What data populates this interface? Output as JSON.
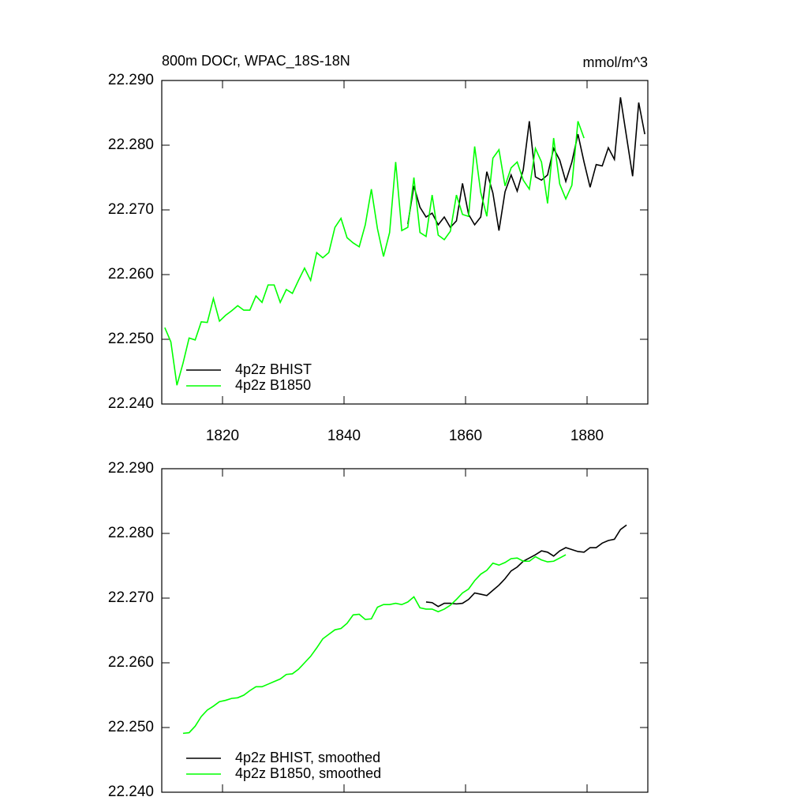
{
  "chart_data": [
    {
      "type": "line",
      "title": "800m DOCr, WPAC_18S-18N",
      "units": "mmol/m^3",
      "xlim": [
        1810,
        1890
      ],
      "xticks": [
        1820,
        1840,
        1860,
        1880
      ],
      "ylim": [
        22.24,
        22.29
      ],
      "yticks": [
        {
          "value": 22.24,
          "label": "22.240"
        },
        {
          "value": 22.25,
          "label": "22.250"
        },
        {
          "value": 22.26,
          "label": "22.260"
        },
        {
          "value": 22.27,
          "label": "22.270"
        },
        {
          "value": 22.28,
          "label": "22.280"
        },
        {
          "value": 22.29,
          "label": "22.290"
        }
      ],
      "legend": "lower left",
      "series": [
        {
          "name": "4p2z BHIST",
          "color": "#000000",
          "x": [
            1850.5,
            1851.5,
            1852.5,
            1853.5,
            1854.5,
            1855.5,
            1856.5,
            1857.5,
            1858.5,
            1859.5,
            1860.5,
            1861.5,
            1862.5,
            1863.5,
            1864.5,
            1865.5,
            1866.5,
            1867.5,
            1868.5,
            1869.5,
            1870.5,
            1871.5,
            1872.5,
            1873.5,
            1874.5,
            1875.5,
            1876.5,
            1877.5,
            1878.5,
            1879.5,
            1880.5,
            1881.5,
            1882.5,
            1883.5,
            1884.5,
            1885.5,
            1886.5,
            1887.5,
            1888.5,
            1889.5
          ],
          "values": [
            22.2678,
            22.2737,
            22.2704,
            22.2689,
            22.2695,
            22.2677,
            22.2689,
            22.2673,
            22.2683,
            22.2741,
            22.2693,
            22.2677,
            22.2689,
            22.2759,
            22.2726,
            22.2668,
            22.2728,
            22.2754,
            22.2729,
            22.2762,
            22.2837,
            22.2751,
            22.2746,
            22.2754,
            22.2795,
            22.2777,
            22.2744,
            22.2774,
            22.2817,
            22.2774,
            22.2735,
            22.277,
            22.2768,
            22.2796,
            22.2778,
            22.2874,
            22.2813,
            22.2752,
            22.2866,
            22.2817
          ]
        },
        {
          "name": "4p2z B1850",
          "color": "#00ff00",
          "x": [
            1810.5,
            1811.5,
            1812.5,
            1813.5,
            1814.5,
            1815.5,
            1816.5,
            1817.5,
            1818.5,
            1819.5,
            1820.5,
            1821.5,
            1822.5,
            1823.5,
            1824.5,
            1825.5,
            1826.5,
            1827.5,
            1828.5,
            1829.5,
            1830.5,
            1831.5,
            1832.5,
            1833.5,
            1834.5,
            1835.5,
            1836.5,
            1837.5,
            1838.5,
            1839.5,
            1840.5,
            1841.5,
            1842.5,
            1843.5,
            1844.5,
            1845.5,
            1846.5,
            1847.5,
            1848.5,
            1849.5,
            1850.5,
            1851.5,
            1852.5,
            1853.5,
            1854.5,
            1855.5,
            1856.5,
            1857.5,
            1858.5,
            1859.5,
            1860.5,
            1861.5,
            1862.5,
            1863.5,
            1864.5,
            1865.5,
            1866.5,
            1867.5,
            1868.5,
            1869.5,
            1870.5,
            1871.5,
            1872.5,
            1873.5,
            1874.5,
            1875.5,
            1876.5,
            1877.5,
            1878.5,
            1879.5
          ],
          "values": [
            22.2518,
            22.2496,
            22.2429,
            22.2463,
            22.2502,
            22.2499,
            22.2527,
            22.2526,
            22.2563,
            22.2528,
            22.2537,
            22.2544,
            22.2552,
            22.2545,
            22.2545,
            22.2567,
            22.2557,
            22.2584,
            22.2584,
            22.2557,
            22.2577,
            22.2571,
            22.2591,
            22.261,
            22.2591,
            22.2634,
            22.2626,
            22.2634,
            22.2673,
            22.2687,
            22.2657,
            22.2649,
            22.2643,
            22.2677,
            22.2732,
            22.2671,
            22.2628,
            22.2665,
            22.2774,
            22.2668,
            22.2673,
            22.275,
            22.2665,
            22.2659,
            22.2723,
            22.2661,
            22.2654,
            22.2667,
            22.2723,
            22.2693,
            22.269,
            22.2798,
            22.2727,
            22.269,
            22.278,
            22.2793,
            22.2737,
            22.2765,
            22.2774,
            22.2746,
            22.2732,
            22.2795,
            22.2774,
            22.271,
            22.2811,
            22.274,
            22.2717,
            22.2738,
            22.2837,
            22.2811
          ]
        }
      ]
    },
    {
      "type": "line",
      "xlim": [
        1810,
        1890
      ],
      "xticks": [
        1820,
        1840,
        1860,
        1880
      ],
      "ylim": [
        22.24,
        22.29
      ],
      "yticks": [
        {
          "value": 22.24,
          "label": "22.240"
        },
        {
          "value": 22.25,
          "label": "22.250"
        },
        {
          "value": 22.26,
          "label": "22.260"
        },
        {
          "value": 22.27,
          "label": "22.270"
        },
        {
          "value": 22.28,
          "label": "22.280"
        },
        {
          "value": 22.29,
          "label": "22.290"
        }
      ],
      "legend": "lower left",
      "series": [
        {
          "name": "4p2z BHIST, smoothed",
          "color": "#000000",
          "x": [
            1853.5,
            1854.5,
            1855.5,
            1856.5,
            1857.5,
            1858.5,
            1859.5,
            1860.5,
            1861.5,
            1862.5,
            1863.5,
            1864.5,
            1865.5,
            1866.5,
            1867.5,
            1868.5,
            1869.5,
            1870.5,
            1871.5,
            1872.5,
            1873.5,
            1874.5,
            1875.5,
            1876.5,
            1877.5,
            1878.5,
            1879.5,
            1880.5,
            1881.5,
            1882.5,
            1883.5,
            1884.5,
            1885.5,
            1886.5
          ],
          "values": [
            22.2694,
            22.2693,
            22.2687,
            22.2692,
            22.2692,
            22.2691,
            22.2692,
            22.2698,
            22.2708,
            22.2706,
            22.2704,
            22.2712,
            22.272,
            22.273,
            22.2742,
            22.2748,
            22.2757,
            22.2762,
            22.2767,
            22.2773,
            22.2771,
            22.2765,
            22.2773,
            22.2778,
            22.2775,
            22.2772,
            22.2771,
            22.2778,
            22.2778,
            22.2785,
            22.2789,
            22.2791,
            22.2806,
            22.2813
          ]
        },
        {
          "name": "4p2z B1850, smoothed",
          "color": "#00ff00",
          "x": [
            1813.5,
            1814.5,
            1815.5,
            1816.5,
            1817.5,
            1818.5,
            1819.5,
            1820.5,
            1821.5,
            1822.5,
            1823.5,
            1824.5,
            1825.5,
            1826.5,
            1827.5,
            1828.5,
            1829.5,
            1830.5,
            1831.5,
            1832.5,
            1833.5,
            1834.5,
            1835.5,
            1836.5,
            1837.5,
            1838.5,
            1839.5,
            1840.5,
            1841.5,
            1842.5,
            1843.5,
            1844.5,
            1845.5,
            1846.5,
            1847.5,
            1848.5,
            1849.5,
            1850.5,
            1851.5,
            1852.5,
            1853.5,
            1854.5,
            1855.5,
            1856.5,
            1857.5,
            1858.5,
            1859.5,
            1860.5,
            1861.5,
            1862.5,
            1863.5,
            1864.5,
            1865.5,
            1866.5,
            1867.5,
            1868.5,
            1869.5,
            1870.5,
            1871.5,
            1872.5,
            1873.5,
            1874.5,
            1875.5,
            1876.5
          ],
          "values": [
            22.2491,
            22.2492,
            22.2502,
            22.2517,
            22.2527,
            22.2533,
            22.254,
            22.2542,
            22.2545,
            22.2546,
            22.255,
            22.2557,
            22.2563,
            22.2563,
            22.2567,
            22.2571,
            22.2575,
            22.2582,
            22.2583,
            22.259,
            22.26,
            22.261,
            22.2623,
            22.2637,
            22.2644,
            22.2651,
            22.2653,
            22.2661,
            22.2674,
            22.2675,
            22.2667,
            22.2668,
            22.2686,
            22.269,
            22.269,
            22.2692,
            22.269,
            22.2694,
            22.2702,
            22.2685,
            22.2683,
            22.2683,
            22.2679,
            22.2683,
            22.2689,
            22.2698,
            22.2708,
            22.2714,
            22.2727,
            22.2737,
            22.2743,
            22.2754,
            22.2751,
            22.2755,
            22.2761,
            22.2762,
            22.2757,
            22.2757,
            22.2764,
            22.2759,
            22.2756,
            22.2757,
            22.2762,
            22.2767
          ]
        }
      ]
    }
  ]
}
